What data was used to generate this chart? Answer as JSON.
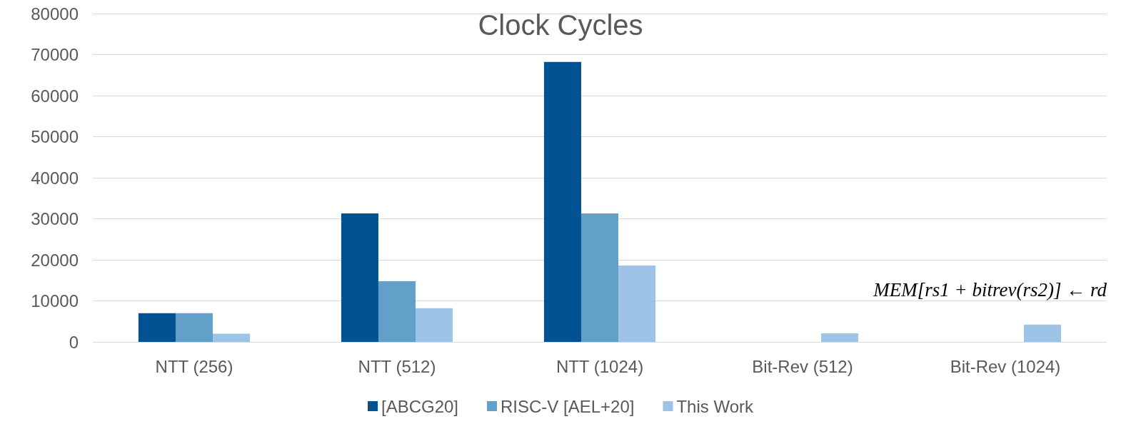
{
  "chart_data": {
    "type": "bar",
    "title": "Clock Cycles",
    "categories": [
      "NTT (256)",
      "NTT (512)",
      "NTT (1024)",
      "Bit-Rev (512)",
      "Bit-Rev (1024)"
    ],
    "series": [
      {
        "name": "[ABCG20]",
        "color": "#005293",
        "values": [
          7000,
          31300,
          68200,
          null,
          null
        ]
      },
      {
        "name": "RISC-V [AEL+20]",
        "color": "#62a0ca",
        "values": [
          7000,
          14800,
          31300,
          null,
          null
        ]
      },
      {
        "name": "This Work",
        "color": "#9dc3e6",
        "values": [
          2000,
          8200,
          18600,
          2100,
          4200
        ]
      }
    ],
    "ylim": [
      0,
      80000
    ],
    "yticks": [
      0,
      10000,
      20000,
      30000,
      40000,
      50000,
      60000,
      70000,
      80000
    ],
    "grid": "y",
    "legend": "bottom",
    "annotations": [
      "MEM[rs1 + bitrev(rs2)] ← rd"
    ]
  }
}
